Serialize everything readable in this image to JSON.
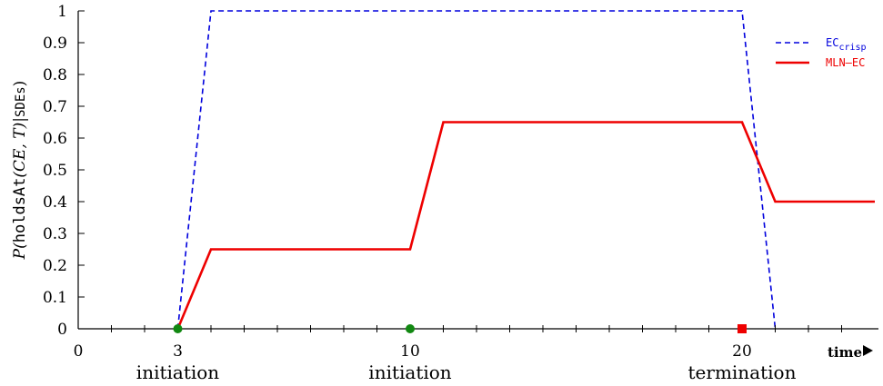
{
  "chart_data": {
    "type": "line",
    "xlabel": "time",
    "ylabel_parts": [
      "P(",
      "holdsAt",
      "(CE, T)|",
      "SDEs",
      ")"
    ],
    "xlim": [
      0,
      24
    ],
    "ylim": [
      0,
      1
    ],
    "y_ticks": [
      0,
      0.1,
      0.2,
      0.3,
      0.4,
      0.5,
      0.6,
      0.7,
      0.8,
      0.9,
      1
    ],
    "y_tick_labels": [
      "0",
      "0.1",
      "0.2",
      "0.3",
      "0.4",
      "0.5",
      "0.6",
      "0.7",
      "0.8",
      "0.9",
      "1"
    ],
    "x_minor_ticks": [
      1,
      2,
      3,
      4,
      5,
      6,
      7,
      8,
      9,
      10,
      11,
      12,
      13,
      14,
      15,
      16,
      17,
      18,
      19,
      20,
      21,
      22,
      23
    ],
    "x_tick_labels": [
      {
        "x": 0,
        "label": "0"
      },
      {
        "x": 3,
        "label": "3"
      },
      {
        "x": 10,
        "label": "10"
      },
      {
        "x": 20,
        "label": "20"
      }
    ],
    "series": [
      {
        "name_main": "EC",
        "name_sub": "crisp",
        "color": "#0000dd",
        "dash": true,
        "points": [
          [
            3,
            0
          ],
          [
            4,
            1
          ],
          [
            20,
            1
          ],
          [
            21,
            0
          ]
        ]
      },
      {
        "name_main": "MLN–EC",
        "name_sub": "",
        "color": "#ee0000",
        "dash": false,
        "points": [
          [
            3,
            0
          ],
          [
            4,
            0.25
          ],
          [
            10,
            0.25
          ],
          [
            11,
            0.65
          ],
          [
            20,
            0.65
          ],
          [
            21,
            0.4
          ],
          [
            24,
            0.4
          ]
        ]
      }
    ],
    "events": [
      {
        "x": 3,
        "label": "initiation",
        "marker": "circle",
        "color": "#118811"
      },
      {
        "x": 10,
        "label": "initiation",
        "marker": "circle",
        "color": "#118811"
      },
      {
        "x": 20,
        "label": "termination",
        "marker": "square",
        "color": "#ee0000"
      }
    ],
    "legend_position": "top-right"
  }
}
